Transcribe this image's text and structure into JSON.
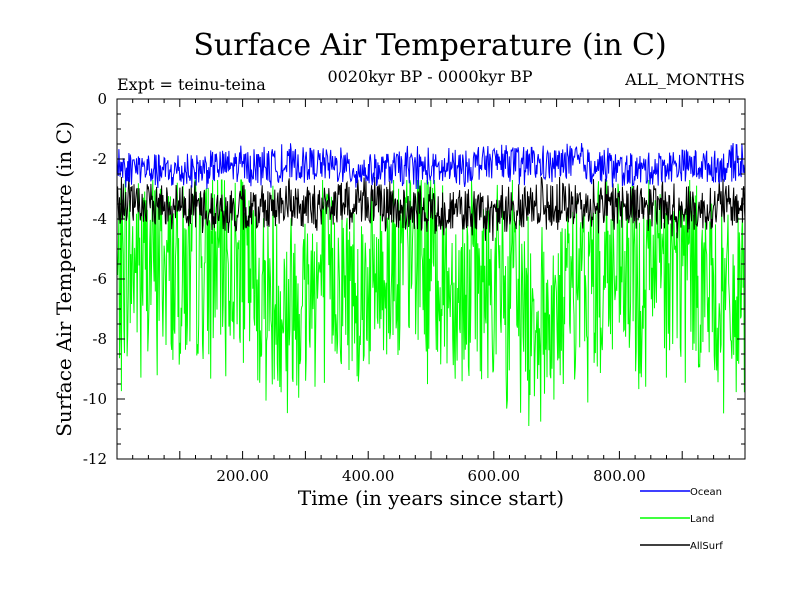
{
  "chart_data": {
    "type": "line",
    "title": "Surface Air Temperature (in C)",
    "subtitle_left": "Expt = teinu-teina",
    "subtitle_center": "0020kyr BP - 0000kyr BP",
    "subtitle_right": "ALL_MONTHS",
    "xlabel": "Time (in years since start)",
    "ylabel": "Surface Air Temperature (in C)",
    "xlim": [
      0,
      1000
    ],
    "ylim": [
      -12,
      0
    ],
    "xticks": [
      200,
      400,
      600,
      800
    ],
    "xtick_labels": [
      "200.00",
      "400.00",
      "600.00",
      "800.00"
    ],
    "yticks": [
      0,
      -2,
      -4,
      -6,
      -8,
      -10,
      -12
    ],
    "ytick_labels": [
      "0",
      "-2",
      "-4",
      "-6",
      "-8",
      "-10",
      "-12"
    ],
    "series": [
      {
        "name": "Land",
        "color": "#00ff00",
        "mean": -5.6,
        "band_low": -9.2,
        "band_high": -3.1,
        "min": -11.0,
        "max": -2.7
      },
      {
        "name": "AllSurf",
        "color": "#000000",
        "mean": -3.55,
        "band_low": -4.3,
        "band_high": -2.9,
        "min": -4.8,
        "max": -2.6
      },
      {
        "name": "Ocean",
        "color": "#0000ff",
        "mean": -2.3,
        "band_low": -2.8,
        "band_high": -1.7,
        "min": -3.0,
        "max": -1.2
      }
    ],
    "legend": {
      "position": "bottom-right",
      "entries": [
        "Ocean",
        "Land",
        "AllSurf"
      ]
    }
  }
}
